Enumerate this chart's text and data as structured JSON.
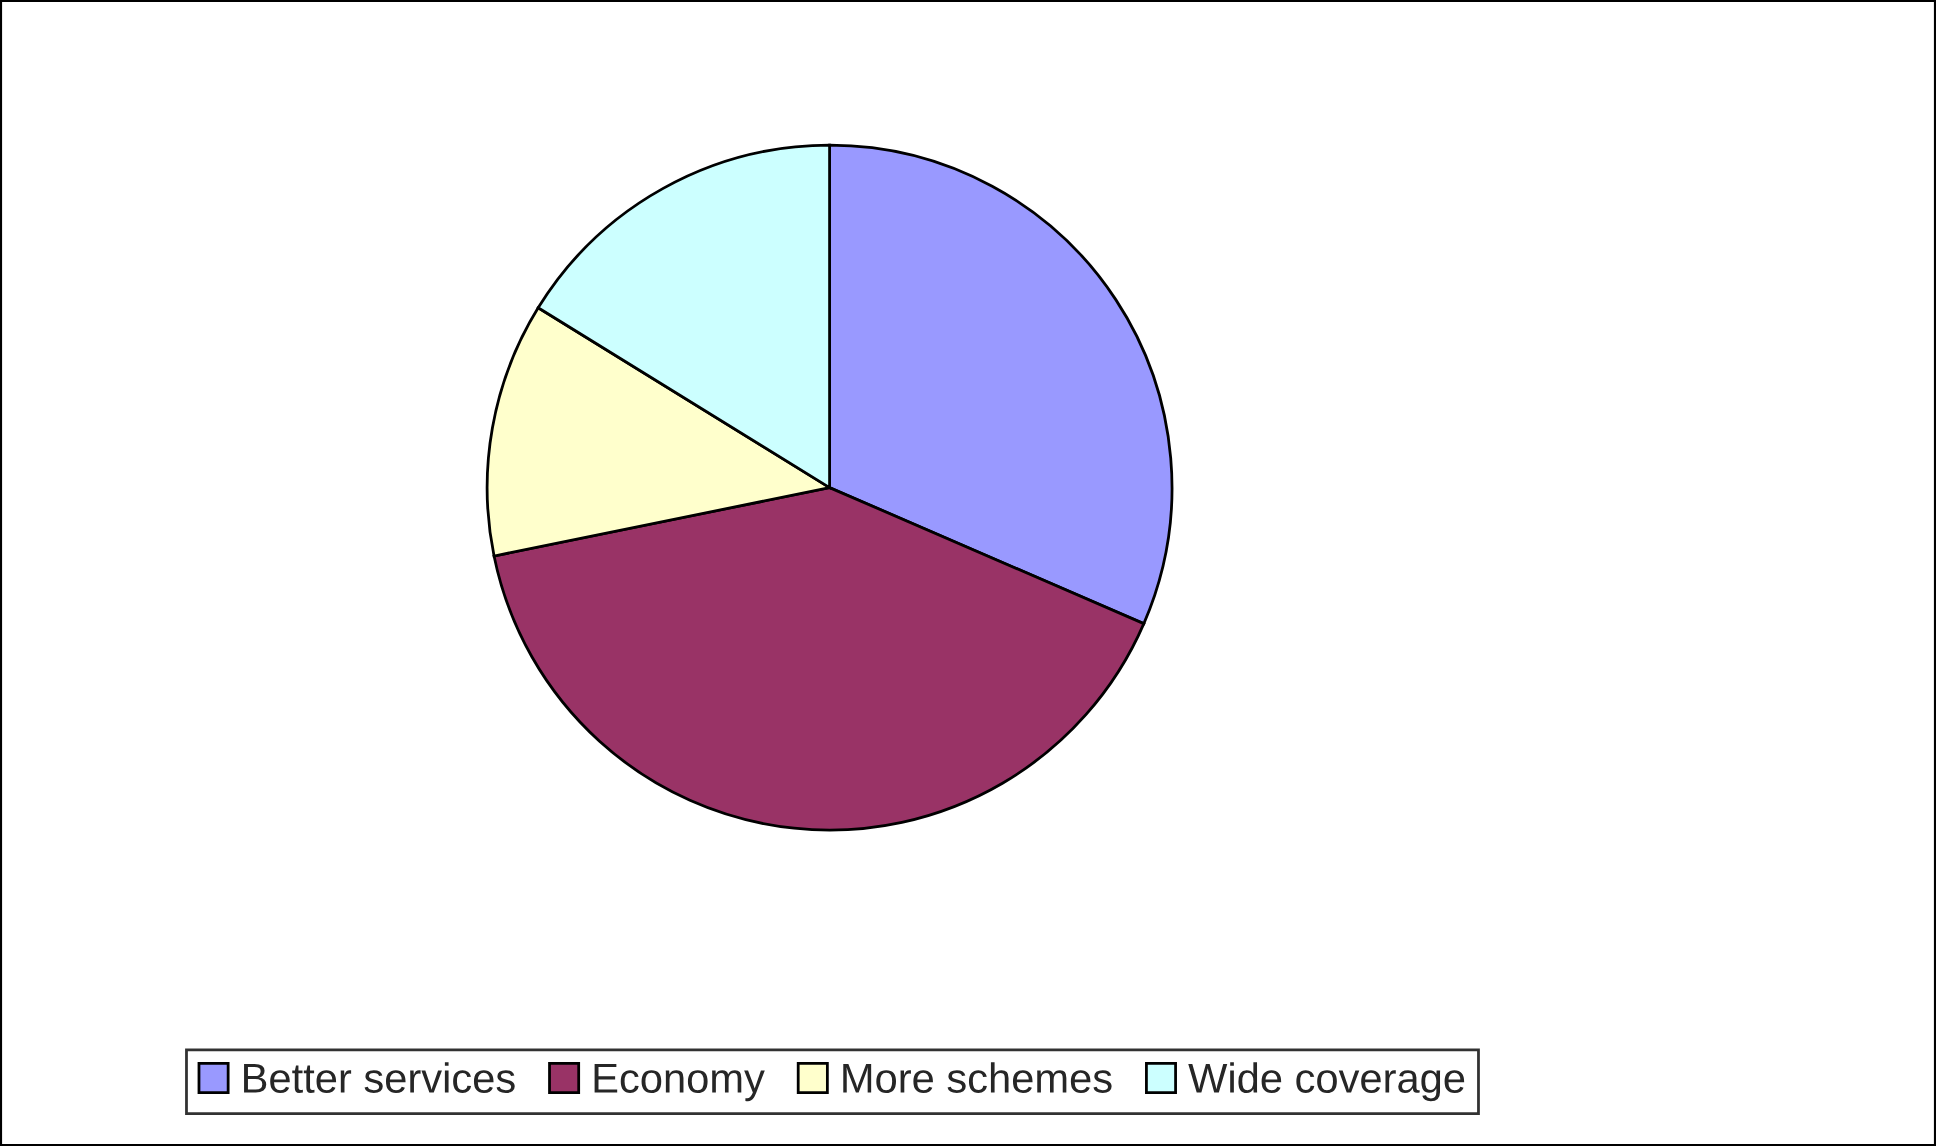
{
  "chart_data": {
    "type": "pie",
    "categories": [
      "Better services",
      "Economy",
      "More schemes",
      "Wide coverage"
    ],
    "values": [
      31.5,
      40.3,
      12,
      16.2
    ],
    "colors": [
      "#9999ff",
      "#993366",
      "#ffffcc",
      "#ccffff"
    ],
    "legend": "bottom"
  }
}
